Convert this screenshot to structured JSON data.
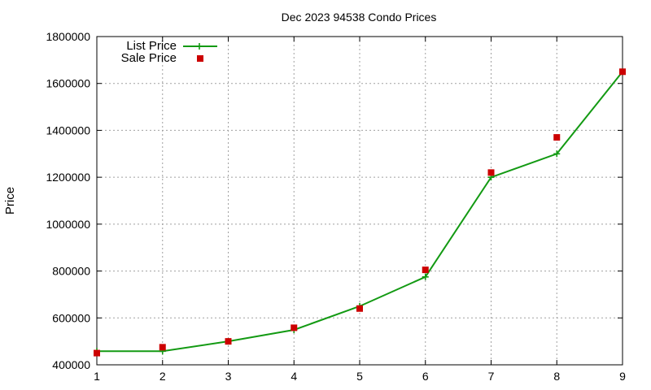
{
  "chart_data": {
    "type": "line",
    "title": "Dec 2023 94538 Condo Prices",
    "xlabel": "",
    "ylabel": "Price",
    "x": [
      1,
      2,
      3,
      4,
      5,
      6,
      7,
      8,
      9
    ],
    "xlim": [
      1,
      9
    ],
    "ylim": [
      400000,
      1800000
    ],
    "x_ticks": [
      "1",
      "2",
      "3",
      "4",
      "5",
      "6",
      "7",
      "8",
      "9"
    ],
    "y_ticks": [
      "400000",
      "600000",
      "800000",
      "1000000",
      "1200000",
      "1400000",
      "1600000",
      "1800000"
    ],
    "grid": true,
    "legend_position": "top-left",
    "series": [
      {
        "name": "List Price",
        "style": "line-plus",
        "color": "#139a13",
        "values": [
          458000,
          458000,
          500000,
          549000,
          650000,
          775000,
          1200000,
          1300000,
          1650000
        ]
      },
      {
        "name": "Sale Price",
        "style": "square-points",
        "color": "#cc0000",
        "values": [
          450000,
          475000,
          500000,
          558000,
          640000,
          805000,
          1220000,
          1370000,
          1650000
        ]
      }
    ]
  }
}
